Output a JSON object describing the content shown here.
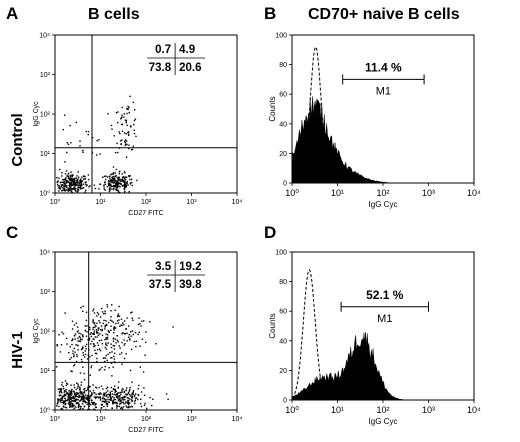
{
  "figure": {
    "letters": {
      "a": "A",
      "b": "B",
      "c": "C",
      "d": "D"
    },
    "col_titles": {
      "left": "B cells",
      "right": "CD70+ naive B cells"
    },
    "row_labels": {
      "top": "Control",
      "bottom": "HIV-1"
    }
  },
  "chart_data": [
    {
      "panel": "A",
      "type": "scatter",
      "xlabel": "CD27 FITC",
      "ylabel": "IgG Cyc",
      "scale": "log",
      "xlim": [
        1,
        10000
      ],
      "ylim": [
        1,
        10000
      ],
      "tick_labels": [
        "10⁰",
        "10¹",
        "10²",
        "10³",
        "10⁴"
      ],
      "gate": {
        "x": 6.5,
        "y": 14
      },
      "quadrants": {
        "ul": "0.7",
        "ur": "4.9",
        "ll": "73.8",
        "lr": "20.6"
      },
      "clusters": [
        {
          "cx": 0.35,
          "cy": 0.25,
          "sx": 0.18,
          "sy": 0.13,
          "n": 260
        },
        {
          "cx": 1.35,
          "cy": 0.25,
          "sx": 0.18,
          "sy": 0.13,
          "n": 200
        },
        {
          "cx": 1.55,
          "cy": 1.7,
          "sx": 0.14,
          "sy": 0.32,
          "n": 70
        },
        {
          "cx": 0.5,
          "cy": 1.2,
          "sx": 0.35,
          "sy": 0.35,
          "n": 25
        }
      ]
    },
    {
      "panel": "B",
      "type": "area",
      "xlabel": "IgG Cyc",
      "ylabel": "Counts",
      "scale": "log-x",
      "xlim": [
        1,
        10000
      ],
      "ylim": [
        0,
        100
      ],
      "x_tick_labels": [
        "10⁰",
        "10¹",
        "10²",
        "10³",
        "10⁴"
      ],
      "y_ticks": [
        0,
        20,
        40,
        60,
        80,
        100
      ],
      "marker": {
        "label": "M1",
        "range": [
          13,
          800
        ],
        "y": 70,
        "percent": "11.4 %"
      },
      "filled_peak": {
        "mu": 0.45,
        "sigma": 0.3,
        "height": 45,
        "tail_height": 12,
        "tail_mu": 0.9,
        "tail_sigma": 0.45
      },
      "dashed_peak": {
        "mu": 0.52,
        "sigma": 0.12,
        "height": 92
      }
    },
    {
      "panel": "C",
      "type": "scatter",
      "xlabel": "CD27 FITC",
      "ylabel": "IgG Cyc",
      "scale": "log",
      "xlim": [
        1,
        10000
      ],
      "ylim": [
        1,
        10000
      ],
      "tick_labels": [
        "10⁰",
        "10¹",
        "10²",
        "10³",
        "10⁴"
      ],
      "gate": {
        "x": 5.5,
        "y": 16
      },
      "quadrants": {
        "ul": "3.5",
        "ur": "19.2",
        "ll": "37.5",
        "lr": "39.8"
      },
      "clusters": [
        {
          "cx": 0.4,
          "cy": 0.3,
          "sx": 0.28,
          "sy": 0.15,
          "n": 320
        },
        {
          "cx": 1.3,
          "cy": 0.3,
          "sx": 0.35,
          "sy": 0.17,
          "n": 280
        },
        {
          "cx": 1.15,
          "cy": 1.9,
          "sx": 0.42,
          "sy": 0.38,
          "n": 260
        },
        {
          "cx": 0.45,
          "cy": 1.5,
          "sx": 0.3,
          "sy": 0.4,
          "n": 80
        }
      ]
    },
    {
      "panel": "D",
      "type": "area",
      "xlabel": "IgG Cyc",
      "ylabel": "Counts",
      "scale": "log-x",
      "xlim": [
        1,
        10000
      ],
      "ylim": [
        0,
        100
      ],
      "x_tick_labels": [
        "10⁰",
        "10¹",
        "10²",
        "10³",
        "10⁴"
      ],
      "y_ticks": [
        0,
        20,
        40,
        60,
        80,
        100
      ],
      "marker": {
        "label": "M1",
        "range": [
          12,
          1000
        ],
        "y": 63,
        "percent": "52.1 %"
      },
      "filled_peak": {
        "mu": 1.55,
        "sigma": 0.28,
        "height": 42,
        "tail_height": 15,
        "tail_mu": 0.7,
        "tail_sigma": 0.35
      },
      "dashed_peak": {
        "mu": 0.38,
        "sigma": 0.13,
        "height": 88
      }
    }
  ]
}
